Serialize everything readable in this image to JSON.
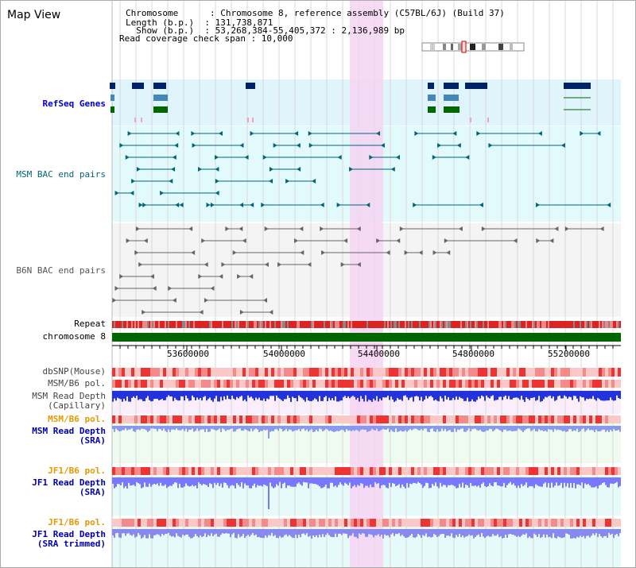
{
  "title": "Map View",
  "info": {
    "line1": "Chromosome      : Chromosome 8, reference assembly (C57BL/6J) (Build 37)",
    "line2": "Length (b.p.)  : 131,738,871",
    "line3": "  Show (b.p.)  : 53,268,384-55,405,372 : 2,136,989 bp",
    "line4": "Read coverage check span : 10,000"
  },
  "tracks": {
    "refseq": "RefSeq Genes",
    "msm_bac": "MSM BAC end pairs",
    "b6n_bac": "B6N BAC end pairs",
    "repeat": "Repeat",
    "chromosome": "chromosome 8",
    "dbsnp": "dbSNP(Mouse)",
    "msm_b6_pol_1": "MSM/B6 pol.",
    "msm_read_depth_cap_1": "MSM Read Depth",
    "msm_read_depth_cap_2": "(Capillary)",
    "msm_b6_pol_2": "MSM/B6 pol.",
    "msm_read_depth_sra_1": "MSM Read Depth",
    "msm_read_depth_sra_2": "(SRA)",
    "jf1_b6_pol_1": "JF1/B6 pol.",
    "jf1_read_depth_1": "JF1 Read Depth",
    "jf1_read_depth_2": "(SRA)",
    "jf1_b6_pol_2": "JF1/B6 pol.",
    "jf1_read_depth_trim_1": "JF1 Read Depth",
    "jf1_read_depth_trim_2": "(SRA trimmed)"
  },
  "axis_ticks": [
    "53600000",
    "54000000",
    "54400000",
    "54800000",
    "55200000"
  ],
  "colors": {
    "refseq_label": "#0000cc",
    "msm_label": "#006677",
    "b6n_label": "#555555",
    "pol_orange": "#e69900",
    "depth_blue": "#0000aa",
    "highlight": "#f8d8f4",
    "chromosome_green": "#006600"
  }
}
